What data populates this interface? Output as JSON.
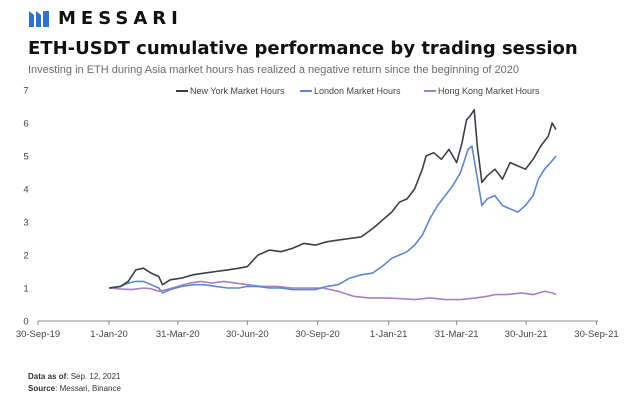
{
  "brand": {
    "name": "MESSARI",
    "logo_icon": "messari-logo-icon"
  },
  "footer": {
    "asof_label": "Data as of",
    "asof_value": "Sep. 12, 2021",
    "source_label": "Source",
    "source_value": "Messari, Binance"
  },
  "chart_data": {
    "type": "line",
    "title": "ETH-USDT cumulative performance by trading session",
    "subtitle": "Investing in ETH during Asia market hours has realized a negative return since the beginning of 2020",
    "xlabel": "",
    "ylabel": "",
    "ylim": [
      0,
      7
    ],
    "yticks": [
      0,
      1,
      2,
      3,
      4,
      5,
      6,
      7
    ],
    "xlim": [
      -93,
      640
    ],
    "xticks": [
      {
        "label": "30-Sep-19",
        "day": -93
      },
      {
        "label": "1-Jan-20",
        "day": 0
      },
      {
        "label": "31-Mar-20",
        "day": 90
      },
      {
        "label": "30-Jun-20",
        "day": 181
      },
      {
        "label": "30-Sep-20",
        "day": 273
      },
      {
        "label": "1-Jan-21",
        "day": 366
      },
      {
        "label": "31-Mar-21",
        "day": 455
      },
      {
        "label": "30-Jun-21",
        "day": 546
      },
      {
        "label": "30-Sep-21",
        "day": 638
      }
    ],
    "legend_position": "top",
    "series": [
      {
        "name": "New York Market Hours",
        "color": "#3a4048",
        "points": [
          [
            0,
            1.0
          ],
          [
            15,
            1.05
          ],
          [
            25,
            1.2
          ],
          [
            35,
            1.55
          ],
          [
            45,
            1.6
          ],
          [
            55,
            1.45
          ],
          [
            65,
            1.35
          ],
          [
            70,
            1.1
          ],
          [
            80,
            1.25
          ],
          [
            95,
            1.3
          ],
          [
            110,
            1.4
          ],
          [
            125,
            1.45
          ],
          [
            140,
            1.5
          ],
          [
            155,
            1.55
          ],
          [
            170,
            1.6
          ],
          [
            181,
            1.65
          ],
          [
            195,
            2.0
          ],
          [
            210,
            2.15
          ],
          [
            225,
            2.1
          ],
          [
            240,
            2.2
          ],
          [
            255,
            2.35
          ],
          [
            270,
            2.3
          ],
          [
            285,
            2.4
          ],
          [
            300,
            2.45
          ],
          [
            315,
            2.5
          ],
          [
            330,
            2.55
          ],
          [
            345,
            2.8
          ],
          [
            360,
            3.1
          ],
          [
            370,
            3.3
          ],
          [
            380,
            3.6
          ],
          [
            390,
            3.7
          ],
          [
            400,
            4.0
          ],
          [
            410,
            4.6
          ],
          [
            415,
            5.0
          ],
          [
            425,
            5.1
          ],
          [
            435,
            4.9
          ],
          [
            445,
            5.2
          ],
          [
            455,
            4.8
          ],
          [
            462,
            5.4
          ],
          [
            468,
            6.1
          ],
          [
            472,
            6.2
          ],
          [
            478,
            6.4
          ],
          [
            482,
            5.3
          ],
          [
            488,
            4.2
          ],
          [
            495,
            4.4
          ],
          [
            505,
            4.6
          ],
          [
            515,
            4.3
          ],
          [
            525,
            4.8
          ],
          [
            535,
            4.7
          ],
          [
            545,
            4.6
          ],
          [
            555,
            4.9
          ],
          [
            565,
            5.3
          ],
          [
            575,
            5.6
          ],
          [
            580,
            6.0
          ],
          [
            585,
            5.8
          ]
        ]
      },
      {
        "name": "London Market Hours",
        "color": "#5b86d6",
        "points": [
          [
            0,
            1.0
          ],
          [
            15,
            1.05
          ],
          [
            25,
            1.15
          ],
          [
            35,
            1.2
          ],
          [
            45,
            1.2
          ],
          [
            55,
            1.1
          ],
          [
            65,
            1.0
          ],
          [
            70,
            0.85
          ],
          [
            80,
            0.95
          ],
          [
            95,
            1.05
          ],
          [
            110,
            1.1
          ],
          [
            125,
            1.1
          ],
          [
            140,
            1.05
          ],
          [
            155,
            1.0
          ],
          [
            170,
            1.0
          ],
          [
            181,
            1.05
          ],
          [
            195,
            1.05
          ],
          [
            210,
            1.0
          ],
          [
            225,
            1.0
          ],
          [
            240,
            0.95
          ],
          [
            255,
            0.95
          ],
          [
            270,
            0.95
          ],
          [
            285,
            1.05
          ],
          [
            300,
            1.1
          ],
          [
            315,
            1.3
          ],
          [
            330,
            1.4
          ],
          [
            345,
            1.45
          ],
          [
            360,
            1.7
          ],
          [
            370,
            1.9
          ],
          [
            380,
            2.0
          ],
          [
            390,
            2.1
          ],
          [
            400,
            2.3
          ],
          [
            410,
            2.6
          ],
          [
            420,
            3.1
          ],
          [
            430,
            3.5
          ],
          [
            440,
            3.8
          ],
          [
            450,
            4.1
          ],
          [
            460,
            4.5
          ],
          [
            470,
            5.2
          ],
          [
            475,
            5.3
          ],
          [
            480,
            4.6
          ],
          [
            488,
            3.5
          ],
          [
            495,
            3.7
          ],
          [
            505,
            3.8
          ],
          [
            515,
            3.5
          ],
          [
            525,
            3.4
          ],
          [
            535,
            3.3
          ],
          [
            545,
            3.5
          ],
          [
            555,
            3.8
          ],
          [
            562,
            4.3
          ],
          [
            570,
            4.6
          ],
          [
            578,
            4.8
          ],
          [
            585,
            5.0
          ]
        ]
      },
      {
        "name": "Hong Kong Market Hours",
        "color": "#a97fc4",
        "points": [
          [
            0,
            1.0
          ],
          [
            15,
            0.97
          ],
          [
            30,
            0.95
          ],
          [
            45,
            1.0
          ],
          [
            55,
            0.98
          ],
          [
            65,
            0.9
          ],
          [
            75,
            0.95
          ],
          [
            90,
            1.05
          ],
          [
            105,
            1.15
          ],
          [
            120,
            1.2
          ],
          [
            135,
            1.15
          ],
          [
            150,
            1.2
          ],
          [
            165,
            1.15
          ],
          [
            181,
            1.1
          ],
          [
            200,
            1.05
          ],
          [
            220,
            1.05
          ],
          [
            240,
            1.0
          ],
          [
            260,
            1.0
          ],
          [
            280,
            1.0
          ],
          [
            300,
            0.9
          ],
          [
            320,
            0.75
          ],
          [
            340,
            0.7
          ],
          [
            360,
            0.7
          ],
          [
            380,
            0.68
          ],
          [
            400,
            0.65
          ],
          [
            420,
            0.7
          ],
          [
            440,
            0.65
          ],
          [
            460,
            0.65
          ],
          [
            480,
            0.7
          ],
          [
            495,
            0.75
          ],
          [
            505,
            0.8
          ],
          [
            520,
            0.8
          ],
          [
            540,
            0.85
          ],
          [
            555,
            0.8
          ],
          [
            570,
            0.9
          ],
          [
            580,
            0.85
          ],
          [
            585,
            0.8
          ]
        ]
      }
    ]
  }
}
